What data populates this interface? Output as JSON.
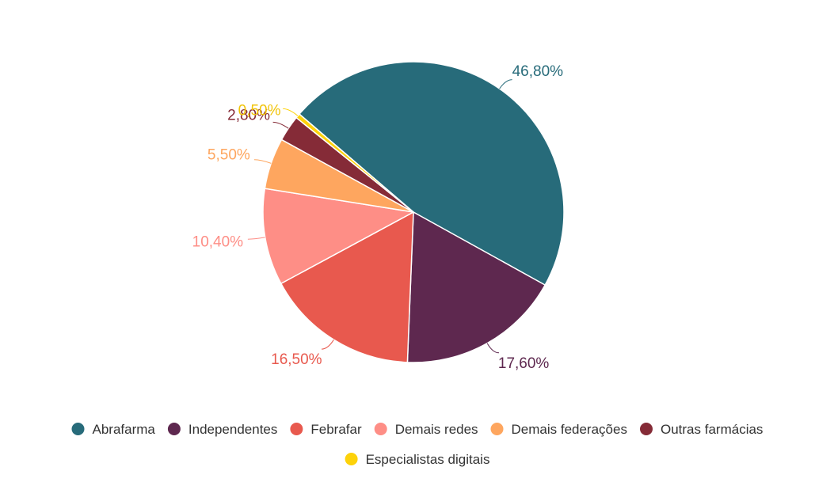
{
  "chart_data": {
    "type": "pie",
    "legend_position": "bottom",
    "slices": [
      {
        "name": "Abrafarma",
        "value": 46.8,
        "label": "46,80%",
        "color": "#276b7a"
      },
      {
        "name": "Independentes",
        "value": 17.6,
        "label": "17,60%",
        "color": "#5e284f"
      },
      {
        "name": "Febrafar",
        "value": 16.5,
        "label": "16,50%",
        "color": "#e8594e"
      },
      {
        "name": "Demais redes",
        "value": 10.4,
        "label": "10,40%",
        "color": "#fe8e86"
      },
      {
        "name": "Demais federações",
        "value": 5.5,
        "label": "5,50%",
        "color": "#fea65f"
      },
      {
        "name": "Outras farmácias",
        "value": 2.8,
        "label": "2,80%",
        "color": "#852b37"
      },
      {
        "name": "Especialistas digitais",
        "value": 0.5,
        "label": "0,50%",
        "color": "#fdd20a"
      }
    ]
  }
}
